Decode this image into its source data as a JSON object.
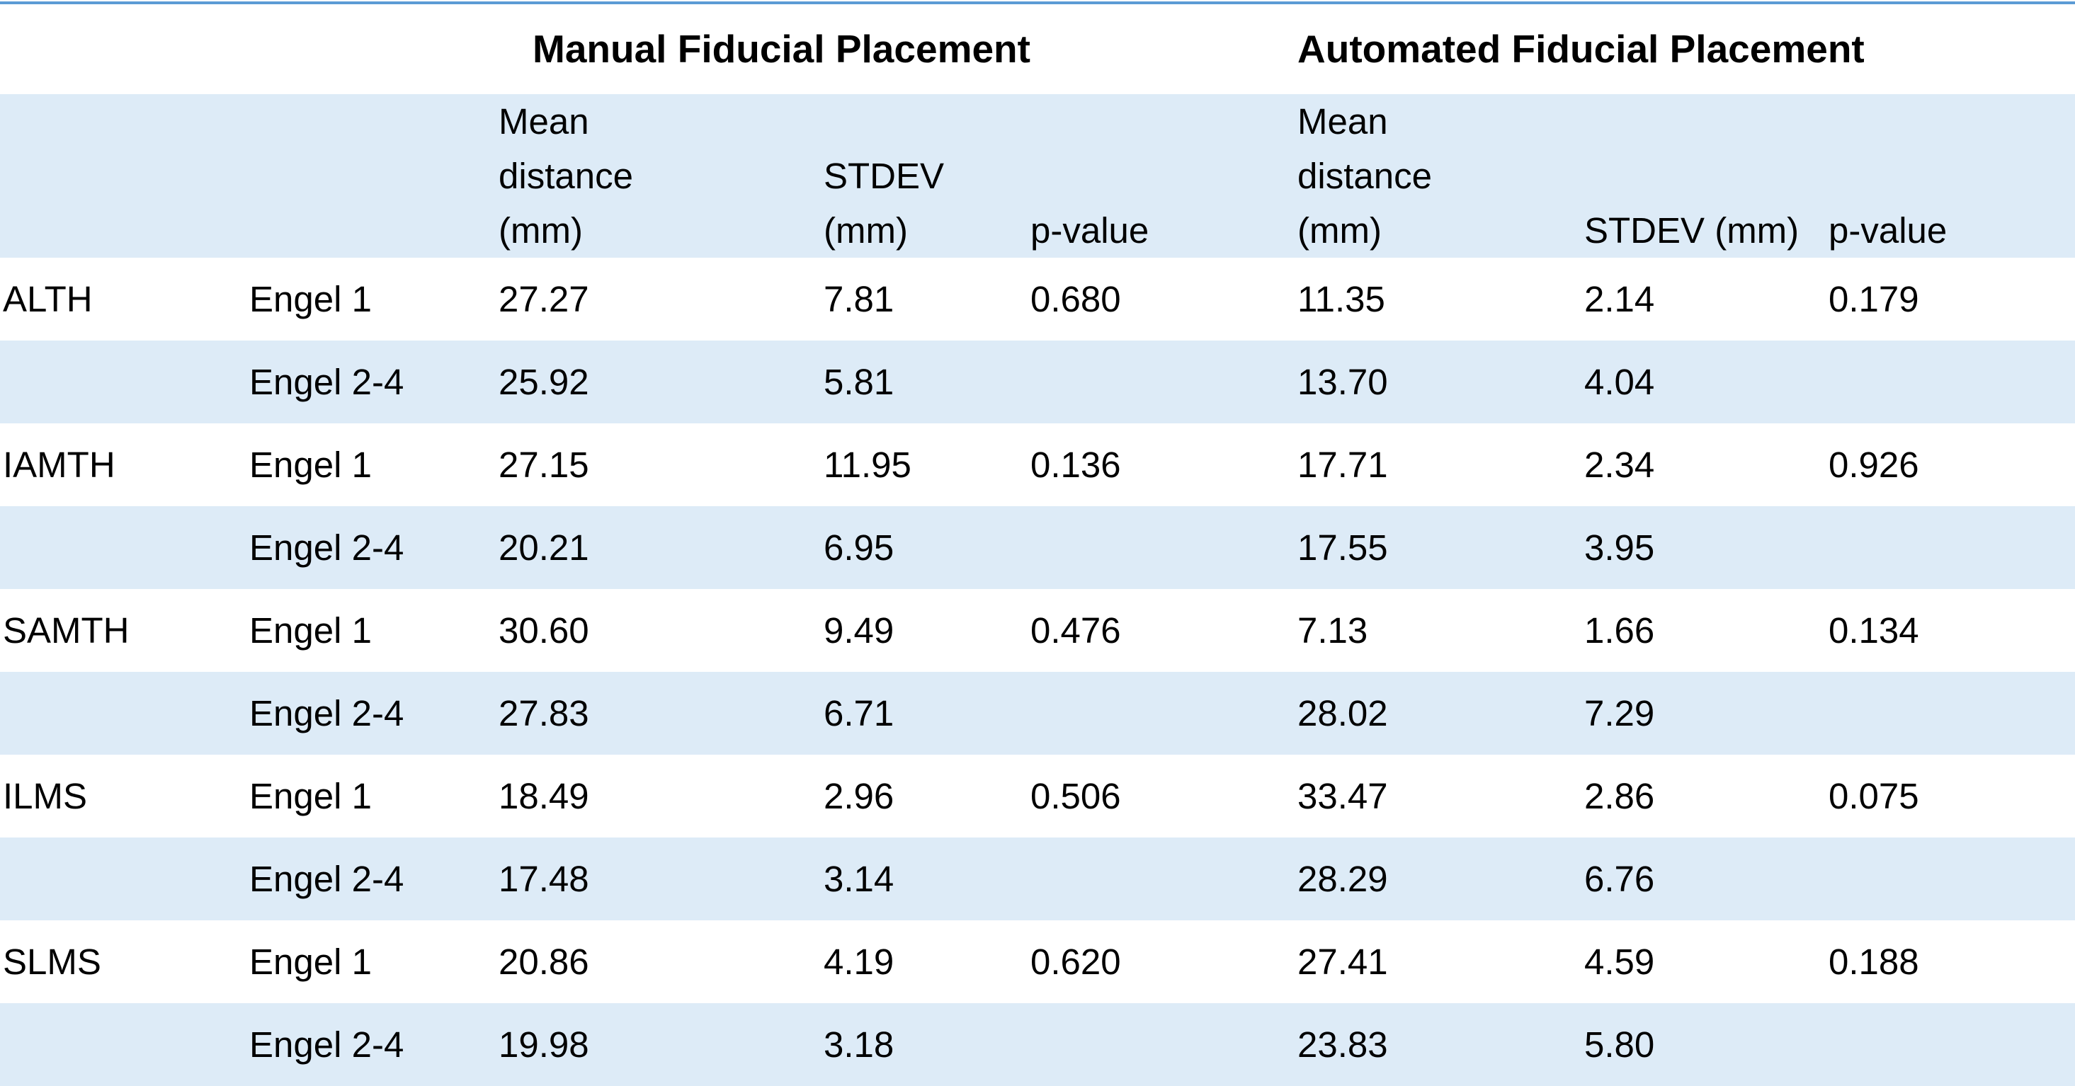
{
  "table": {
    "group_headers": {
      "manual": "Manual Fiducial Placement",
      "automated": "Automated Fiducial Placement"
    },
    "column_headers": {
      "manual_mean": "Mean distance (mm)",
      "manual_stdev": "STDEV (mm)",
      "manual_p": "p-value",
      "auto_mean": "Mean distance (mm)",
      "auto_stdev": "STDEV (mm)",
      "auto_p": "p-value"
    },
    "rows": [
      {
        "region": "ALTH",
        "group": "Engel 1",
        "m_mean": "27.27",
        "m_sd": "7.81",
        "m_p": "0.680",
        "a_mean": "11.35",
        "a_sd": "2.14",
        "a_p": "0.179"
      },
      {
        "region": "",
        "group": "Engel 2-4",
        "m_mean": "25.92",
        "m_sd": "5.81",
        "m_p": "",
        "a_mean": "13.70",
        "a_sd": "4.04",
        "a_p": ""
      },
      {
        "region": "IAMTH",
        "group": "Engel 1",
        "m_mean": "27.15",
        "m_sd": "11.95",
        "m_p": "0.136",
        "a_mean": "17.71",
        "a_sd": "2.34",
        "a_p": "0.926"
      },
      {
        "region": "",
        "group": "Engel 2-4",
        "m_mean": "20.21",
        "m_sd": "6.95",
        "m_p": "",
        "a_mean": "17.55",
        "a_sd": "3.95",
        "a_p": ""
      },
      {
        "region": "SAMTH",
        "group": "Engel 1",
        "m_mean": "30.60",
        "m_sd": "9.49",
        "m_p": "0.476",
        "a_mean": "7.13",
        "a_sd": "1.66",
        "a_p": "0.134"
      },
      {
        "region": "",
        "group": "Engel 2-4",
        "m_mean": "27.83",
        "m_sd": "6.71",
        "m_p": "",
        "a_mean": "28.02",
        "a_sd": "7.29",
        "a_p": ""
      },
      {
        "region": "ILMS",
        "group": "Engel 1",
        "m_mean": "18.49",
        "m_sd": "2.96",
        "m_p": "0.506",
        "a_mean": "33.47",
        "a_sd": "2.86",
        "a_p": "0.075"
      },
      {
        "region": "",
        "group": "Engel 2-4",
        "m_mean": "17.48",
        "m_sd": "3.14",
        "m_p": "",
        "a_mean": "28.29",
        "a_sd": "6.76",
        "a_p": ""
      },
      {
        "region": "SLMS",
        "group": "Engel 1",
        "m_mean": "20.86",
        "m_sd": "4.19",
        "m_p": "0.620",
        "a_mean": "27.41",
        "a_sd": "4.59",
        "a_p": "0.188"
      },
      {
        "region": "",
        "group": "Engel 2-4",
        "m_mean": "19.98",
        "m_sd": "3.18",
        "m_p": "",
        "a_mean": "23.83",
        "a_sd": "5.80",
        "a_p": ""
      }
    ]
  },
  "colors": {
    "rule": "#5b9bd5",
    "band": "#ddebf7"
  }
}
